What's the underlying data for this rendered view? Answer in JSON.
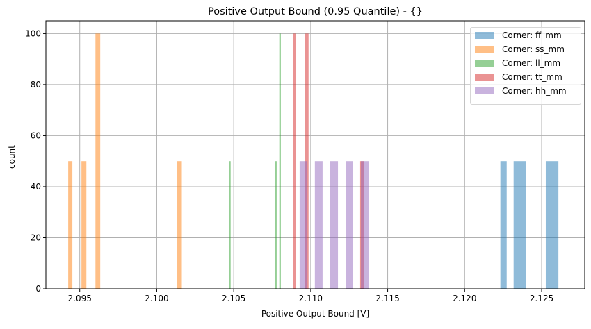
{
  "chart_data": {
    "type": "histogram",
    "title": "Positive Output Bound (0.95 Quantile) - {}",
    "xlabel": "Positive Output Bound [V]",
    "ylabel": "count",
    "xlim": [
      2.0928,
      2.1278
    ],
    "ylim": [
      0,
      105
    ],
    "xticks": [
      "2.095",
      "2.100",
      "2.105",
      "2.110",
      "2.115",
      "2.120",
      "2.125"
    ],
    "xtick_values": [
      2.095,
      2.1,
      2.105,
      2.11,
      2.115,
      2.12,
      2.125
    ],
    "yticks": [
      "0",
      "20",
      "40",
      "60",
      "80",
      "100"
    ],
    "ytick_values": [
      0,
      20,
      40,
      60,
      80,
      100
    ],
    "grid": true,
    "legend_position": "upper right",
    "series": [
      {
        "name": "Corner: ff_mm",
        "color": "#1f77b4",
        "bars": [
          {
            "x0": 2.12232,
            "x1": 2.12273,
            "count": 50
          },
          {
            "x0": 2.12318,
            "x1": 2.124,
            "count": 50
          },
          {
            "x0": 2.12527,
            "x1": 2.12609,
            "count": 50
          }
        ]
      },
      {
        "name": "Corner: ss_mm",
        "color": "#ff7f0e",
        "bars": [
          {
            "x0": 2.09425,
            "x1": 2.09452,
            "count": 50
          },
          {
            "x0": 2.09511,
            "x1": 2.09543,
            "count": 50
          },
          {
            "x0": 2.09602,
            "x1": 2.09633,
            "count": 100
          },
          {
            "x0": 2.10131,
            "x1": 2.10163,
            "count": 50
          }
        ]
      },
      {
        "name": "Corner: ll_mm",
        "color": "#2ca02c",
        "bars": [
          {
            "x0": 2.1047,
            "x1": 2.1048,
            "count": 50
          },
          {
            "x0": 2.10769,
            "x1": 2.10779,
            "count": 50
          },
          {
            "x0": 2.10796,
            "x1": 2.10806,
            "count": 100
          }
        ]
      },
      {
        "name": "Corner: tt_mm",
        "color": "#d62728",
        "bars": [
          {
            "x0": 2.10887,
            "x1": 2.10905,
            "count": 100
          },
          {
            "x0": 2.10964,
            "x1": 2.10986,
            "count": 100
          },
          {
            "x0": 2.11321,
            "x1": 2.11344,
            "count": 50
          }
        ]
      },
      {
        "name": "Corner: hh_mm",
        "color": "#9467bd",
        "bars": [
          {
            "x0": 2.10928,
            "x1": 2.10977,
            "count": 50
          },
          {
            "x0": 2.11027,
            "x1": 2.11077,
            "count": 50
          },
          {
            "x0": 2.11127,
            "x1": 2.11177,
            "count": 50
          },
          {
            "x0": 2.11227,
            "x1": 2.11276,
            "count": 50
          },
          {
            "x0": 2.11326,
            "x1": 2.1138,
            "count": 50
          }
        ]
      }
    ]
  }
}
